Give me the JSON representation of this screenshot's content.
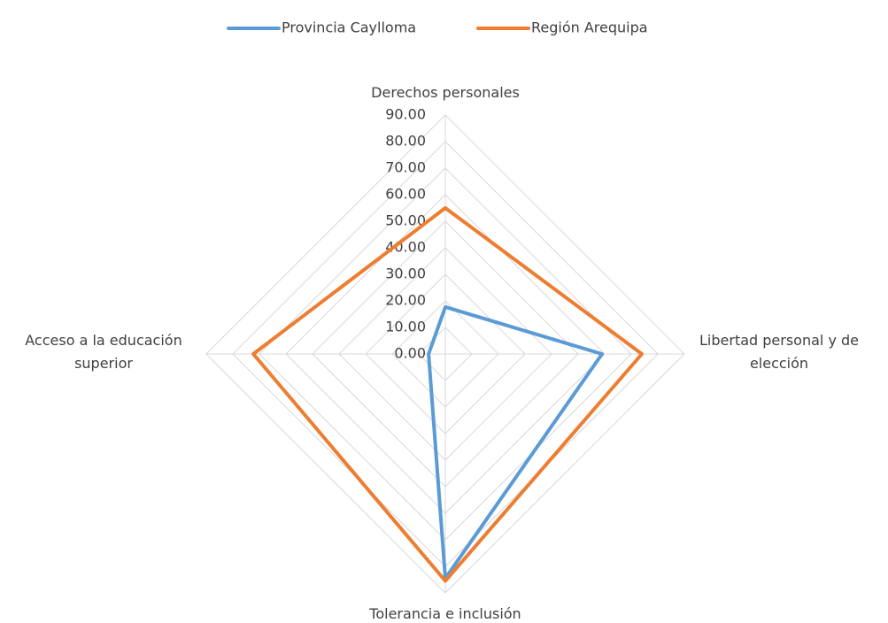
{
  "chart_data": {
    "type": "radar",
    "categories": [
      "Derechos personales",
      "Libertad personal y de elección",
      "Tolerancia e inclusión",
      "Acceso a la educación superior"
    ],
    "series": [
      {
        "name": "Provincia Caylloma",
        "color": "#5b9bd5",
        "values": [
          17.7,
          59,
          84.5,
          6.3
        ]
      },
      {
        "name": "Región Arequipa",
        "color": "#ed7d31",
        "values": [
          55,
          74,
          85.5,
          72.3
        ]
      }
    ],
    "ylim": [
      0,
      90
    ],
    "yticks": [
      {
        "value": 0,
        "label": "0.00"
      },
      {
        "value": 10,
        "label": "10.00"
      },
      {
        "value": 20,
        "label": "20.00"
      },
      {
        "value": 30,
        "label": "30.00"
      },
      {
        "value": 40,
        "label": "40.00"
      },
      {
        "value": 50,
        "label": "50.00"
      },
      {
        "value": 60,
        "label": "60.00"
      },
      {
        "value": 70,
        "label": "70.00"
      },
      {
        "value": 80,
        "label": "80.00"
      },
      {
        "value": 90,
        "label": "90.00"
      }
    ],
    "grid": true,
    "legend": "top"
  }
}
